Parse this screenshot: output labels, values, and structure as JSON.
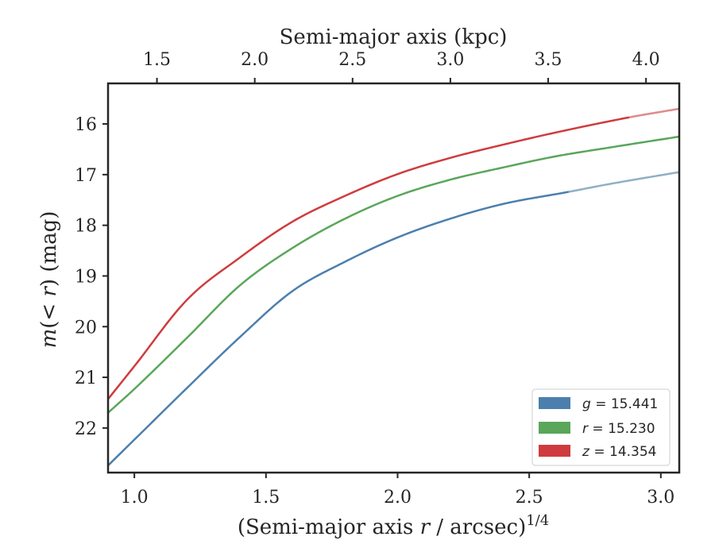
{
  "chart_data": {
    "type": "line",
    "title": "",
    "xlabel": {
      "prefix": "(Semi-major axis ",
      "var": "r",
      "mid": " / arcsec)",
      "sup": "1/4"
    },
    "ylabel": {
      "italic_start": "m",
      "paren_open": "(< ",
      "var": "r",
      "rest": ") (mag)"
    },
    "top_xlabel": "Semi-major axis (kpc)",
    "xlim": [
      0.9,
      3.07
    ],
    "ylim": [
      22.88,
      15.2
    ],
    "x_ticks": [
      1.0,
      1.5,
      2.0,
      2.5,
      3.0
    ],
    "x_tick_labels": [
      "1.0",
      "1.5",
      "2.0",
      "2.5",
      "3.0"
    ],
    "y_ticks": [
      16,
      17,
      18,
      19,
      20,
      21,
      22
    ],
    "y_tick_labels": [
      "16",
      "17",
      "18",
      "19",
      "20",
      "21",
      "22"
    ],
    "top_ticks_kpc": [
      1.5,
      2.0,
      2.5,
      3.0,
      3.5,
      4.0
    ],
    "top_tick_labels": [
      "1.5",
      "2.0",
      "2.5",
      "3.0",
      "3.5",
      "4.0"
    ],
    "top_xlim_kpc": [
      1.25,
      4.17
    ],
    "legend_position": "lower-right",
    "series": [
      {
        "name": "g = 15.441",
        "band": "g",
        "value": "15.441",
        "color": "#4c7fad",
        "faint_color": "#8fb0c6",
        "measured_until": 2.65,
        "x": [
          0.9,
          1.0,
          1.2,
          1.4,
          1.6,
          1.8,
          2.0,
          2.2,
          2.4,
          2.65,
          2.8,
          3.07
        ],
        "values": [
          22.74,
          22.23,
          21.21,
          20.21,
          19.3,
          18.72,
          18.24,
          17.87,
          17.58,
          17.34,
          17.19,
          16.95
        ]
      },
      {
        "name": "r = 15.230",
        "band": "r",
        "value": "15.230",
        "color": "#5aa65a",
        "faint_color": "#97c497",
        "measured_until": 3.07,
        "x": [
          0.9,
          1.0,
          1.2,
          1.4,
          1.6,
          1.8,
          2.0,
          2.2,
          2.4,
          2.6,
          2.8,
          3.07
        ],
        "values": [
          21.7,
          21.23,
          20.22,
          19.19,
          18.45,
          17.87,
          17.42,
          17.1,
          16.86,
          16.64,
          16.47,
          16.25
        ]
      },
      {
        "name": "z = 14.354",
        "band": "z",
        "value": "14.354",
        "color": "#cf3b3e",
        "faint_color": "#e08a8c",
        "measured_until": 2.88,
        "x": [
          0.9,
          1.0,
          1.2,
          1.4,
          1.6,
          1.8,
          2.0,
          2.2,
          2.4,
          2.6,
          2.88,
          3.07
        ],
        "values": [
          21.43,
          20.78,
          19.47,
          18.64,
          17.93,
          17.42,
          16.99,
          16.67,
          16.41,
          16.17,
          15.87,
          15.7
        ]
      }
    ]
  }
}
